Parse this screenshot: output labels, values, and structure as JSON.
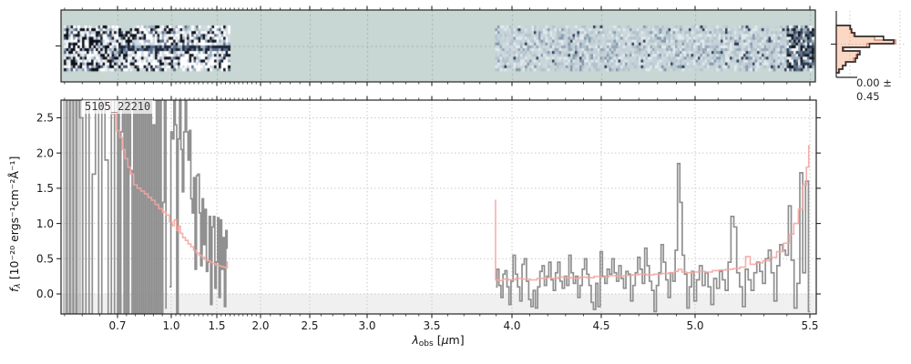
{
  "figure": {
    "id_label": "5105_22210",
    "background": "#ffffff"
  },
  "axes": {
    "x": {
      "symbol": "λ",
      "subscript": "obs",
      "unit_open": " [",
      "mu": "μ",
      "unit_close": "m]",
      "major_ticks": [
        {
          "value": 0.7,
          "label": "0.7"
        },
        {
          "value": 1.0,
          "label": "1.0"
        },
        {
          "value": 1.5,
          "label": "1.5"
        },
        {
          "value": 2.0,
          "label": "2.0"
        },
        {
          "value": 2.5,
          "label": "2.5"
        },
        {
          "value": 3.0,
          "label": "3.0"
        },
        {
          "value": 3.5,
          "label": "3.5"
        },
        {
          "value": 4.0,
          "label": "4.0"
        },
        {
          "value": 4.5,
          "label": "4.5"
        },
        {
          "value": 5.0,
          "label": "5.0"
        },
        {
          "value": 5.5,
          "label": "5.5"
        }
      ]
    },
    "y": {
      "symbol": "f",
      "subscript": "λ",
      "unit": " [10⁻²⁰ ergs⁻¹cm⁻²Å⁻¹]",
      "major_ticks": [
        {
          "value": 0.0,
          "label": "0.0"
        },
        {
          "value": 0.5,
          "label": "0.5"
        },
        {
          "value": 1.0,
          "label": "1.0"
        },
        {
          "value": 1.5,
          "label": "1.5"
        },
        {
          "value": 2.0,
          "label": "2.0"
        },
        {
          "value": 2.5,
          "label": "2.5"
        }
      ]
    }
  },
  "histogram": {
    "annotation": "0.00 ± 0.45",
    "bins_black": [
      0.22,
      0.24,
      0.29,
      0.74,
      0.9,
      0.52,
      0.1,
      0.37,
      0.33,
      0.3,
      0.15,
      0.1,
      0.04
    ],
    "bins_salmon": [
      0.21,
      0.23,
      0.27,
      0.6,
      0.93,
      0.48,
      0.12,
      0.34,
      0.31,
      0.27,
      0.14,
      0.1,
      0.05
    ]
  },
  "colors": {
    "teal_background": "#c8d7d3",
    "spine": "#262626",
    "grid": "#c6c6c6",
    "grid_2d": "#a6b2b0",
    "spectrum_gray": "#8a8a8a",
    "model_pink": "#f4a6a1",
    "below_zero_shade": "#f0f0f0",
    "hist_black": "#333333",
    "hist_salmon_line": "#e2825e",
    "hist_salmon_fill": "rgba(247,166,128,0.45)"
  },
  "spec2d": {
    "strips": [
      {
        "lambda_min": 0.548,
        "lambda_max": 1.645,
        "contrast": "high"
      },
      {
        "lambda_min": 3.895,
        "lambda_max": 5.52,
        "contrast": "low"
      }
    ]
  },
  "chart_data": {
    "type": "line",
    "title": "",
    "xlabel": "lambda_obs [micron]",
    "ylabel": "f_lambda [1e-20 ergs-1 cm-2 A-1]",
    "xlim": [
      0.54,
      5.54
    ],
    "ylim": [
      -0.284,
      2.752
    ],
    "grid": true,
    "x_scale_points": [
      [
        0.54,
        67
      ],
      [
        0.7,
        129
      ],
      [
        1.0,
        188
      ],
      [
        1.5,
        238
      ],
      [
        2.0,
        286
      ],
      [
        2.5,
        340
      ],
      [
        3.0,
        403
      ],
      [
        3.5,
        474
      ],
      [
        4.0,
        562
      ],
      [
        4.5,
        660
      ],
      [
        5.0,
        763
      ],
      [
        5.5,
        889
      ],
      [
        5.54,
        896
      ]
    ],
    "series": [
      {
        "name": "spectrum-blue-side-saturated",
        "role": "data",
        "color": "#8a8a8a",
        "x_start": 0.552,
        "x_step": 0.009,
        "y": [
          9,
          -9,
          9,
          -9,
          9,
          2.5,
          -9,
          9,
          -9,
          1.7,
          9,
          -9,
          9,
          1.9,
          -9,
          9,
          -9,
          9,
          -9,
          2.3,
          9,
          -9,
          9,
          -9,
          9,
          1.75,
          -9,
          9,
          -9,
          9,
          -9,
          9,
          -9,
          9,
          -0.5,
          9,
          -9,
          9,
          -9,
          2.4,
          -9,
          9,
          -9,
          9,
          -9,
          1.3,
          9,
          -0.2
        ]
      },
      {
        "name": "spectrum-blue-side",
        "role": "data",
        "color": "#8a8a8a",
        "x_start": 0.99,
        "x_step": 0.0155,
        "y": [
          0.1,
          2.3,
          2.2,
          9,
          2.4,
          -9,
          2.2,
          9,
          2.05,
          1.45,
          2.3,
          9,
          2.3,
          1.9,
          2.32,
          1.35,
          1.15,
          1.65,
          0.35,
          1.68,
          1.7,
          1.15,
          0.4,
          1.35,
          0.7,
          1.2,
          0.32,
          0.45,
          1.1,
          -0.15,
          0.95,
          1.1,
          0.08,
          0.45,
          1.08,
          -0.05,
          1.05,
          0.35,
          0.8,
          -0.18,
          0.9,
          0.65
        ]
      },
      {
        "name": "spectrum-red-side",
        "role": "data",
        "color": "#8a8a8a",
        "x_start": 3.9,
        "x_step": 0.0125,
        "y": [
          0.1,
          0.35,
          0.12,
          -0.05,
          0.28,
          0.33,
          0.1,
          -0.15,
          0.18,
          0.55,
          0.28,
          0.1,
          -0.1,
          0.42,
          0.5,
          0.18,
          -0.08,
          -0.18,
          0.05,
          -0.2,
          0.1,
          0.32,
          0.4,
          0.12,
          0.25,
          0.45,
          0.2,
          0.05,
          0.3,
          0.45,
          0.18,
          0.08,
          0.25,
          0.12,
          0.55,
          0.3,
          0.15,
          0.25,
          -0.05,
          0.12,
          0.35,
          0.5,
          0.28,
          0.12,
          -0.12,
          -0.22,
          0.15,
          -0.18,
          0.6,
          0.25,
          0.15,
          0.35,
          0.28,
          0.5,
          0.3,
          0.18,
          0.4,
          0.22,
          0.08,
          0.32,
          0.28,
          -0.1,
          0.12,
          0.3,
          0.52,
          0.35,
          0.15,
          0.65,
          0.4,
          0.18,
          0.05,
          -0.25,
          0.12,
          0.3,
          0.7,
          0.45,
          0.2,
          -0.05,
          0.3,
          0.18,
          0.62,
          1.85,
          1.3,
          0.55,
          0.28,
          -0.2,
          0.1,
          0.32,
          -0.1,
          0.2,
          0.4,
          0.12,
          0.3,
          0.1,
          -0.15,
          0.22,
          0.08,
          0.32,
          0.2,
          0.05,
          0.45,
          1.1,
          0.95,
          0.3,
          0.1,
          -0.18,
          0.35,
          0.2,
          0.05,
          0.3,
          0.45,
          0.32,
          0.15,
          0.5,
          0.62,
          0.3,
          -0.1,
          0.4,
          0.7,
          0.62,
          0.55,
          1.25,
          0.48,
          -0.2,
          0.15,
          1.72,
          0.3,
          1.6,
          -0.25
        ]
      },
      {
        "name": "model-blue-side",
        "role": "model",
        "color": "#f4a6a1",
        "x": [
          0.675,
          0.69,
          0.705,
          0.72,
          0.735,
          0.75,
          0.765,
          0.78,
          0.8,
          0.82,
          0.84,
          0.86,
          0.88,
          0.9,
          0.92,
          0.94,
          0.96,
          0.98,
          1.0,
          1.02,
          1.045,
          1.07,
          1.09,
          1.11,
          1.14,
          1.17,
          1.2,
          1.23,
          1.26,
          1.29,
          1.32,
          1.35,
          1.38,
          1.41,
          1.44,
          1.47,
          1.5,
          1.53,
          1.56,
          1.59,
          1.61,
          1.63
        ],
        "y": [
          2.95,
          2.55,
          2.32,
          2.22,
          2.05,
          1.92,
          1.8,
          1.7,
          1.55,
          1.5,
          1.46,
          1.42,
          1.37,
          1.33,
          1.27,
          1.21,
          1.16,
          1.12,
          1.02,
          0.97,
          1.05,
          0.9,
          0.96,
          0.86,
          0.8,
          0.76,
          0.71,
          0.67,
          0.62,
          0.58,
          0.55,
          0.52,
          0.49,
          0.47,
          0.45,
          0.43,
          0.41,
          0.4,
          0.39,
          0.38,
          0.37,
          0.45
        ]
      },
      {
        "name": "model-red-side",
        "role": "model",
        "color": "#f4a6a1",
        "x": [
          3.895,
          3.9,
          3.93,
          3.96,
          4.0,
          4.04,
          4.08,
          4.12,
          4.16,
          4.2,
          4.24,
          4.28,
          4.32,
          4.36,
          4.4,
          4.44,
          4.48,
          4.52,
          4.56,
          4.6,
          4.64,
          4.68,
          4.72,
          4.76,
          4.8,
          4.84,
          4.88,
          4.9,
          4.92,
          4.94,
          4.97,
          5.0,
          5.03,
          5.06,
          5.09,
          5.12,
          5.15,
          5.18,
          5.21,
          5.23,
          5.25,
          5.28,
          5.31,
          5.34,
          5.37,
          5.4,
          5.42,
          5.44,
          5.46,
          5.48,
          5.49,
          5.5
        ],
        "y": [
          1.33,
          0.2,
          0.19,
          0.21,
          0.2,
          0.22,
          0.21,
          0.2,
          0.22,
          0.23,
          0.22,
          0.24,
          0.23,
          0.22,
          0.24,
          0.23,
          0.25,
          0.24,
          0.26,
          0.25,
          0.26,
          0.27,
          0.28,
          0.27,
          0.28,
          0.29,
          0.3,
          0.32,
          0.35,
          0.31,
          0.3,
          0.31,
          0.32,
          0.31,
          0.33,
          0.34,
          0.35,
          0.36,
          0.38,
          0.53,
          0.42,
          0.44,
          0.47,
          0.52,
          0.6,
          0.72,
          0.85,
          1.0,
          1.2,
          1.55,
          1.8,
          2.1
        ]
      }
    ]
  }
}
